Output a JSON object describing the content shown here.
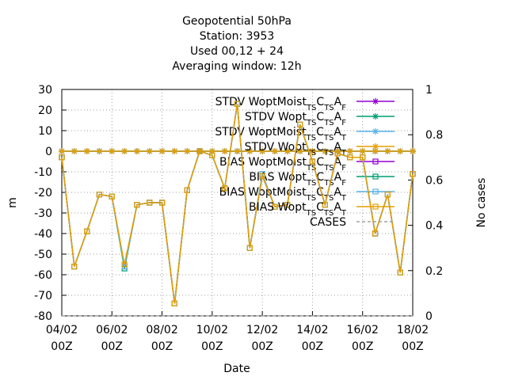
{
  "chart_data": {
    "type": "line",
    "title": [
      "Geopotential 50hPa",
      "Station:     3953",
      "Used  00,12  + 24",
      "Averaging window: 12h"
    ],
    "xlabel": "Date",
    "ylabel": "m",
    "y2label": "No cases",
    "x": [
      "04/02 00Z",
      "04/02 12Z",
      "05/02 00Z",
      "05/02 12Z",
      "06/02 00Z",
      "06/02 12Z",
      "07/02 00Z",
      "07/02 12Z",
      "08/02 00Z",
      "08/02 12Z",
      "09/02 00Z",
      "09/02 12Z",
      "10/02 00Z",
      "10/02 12Z",
      "11/02 00Z",
      "11/02 12Z",
      "12/02 00Z",
      "12/02 12Z",
      "13/02 00Z",
      "13/02 12Z",
      "14/02 00Z",
      "14/02 12Z",
      "15/02 00Z",
      "15/02 12Z",
      "16/02 00Z",
      "16/02 12Z",
      "17/02 00Z",
      "17/02 12Z",
      "18/02 00Z"
    ],
    "xticks": [
      [
        "04/02",
        "00Z"
      ],
      [
        "06/02",
        "00Z"
      ],
      [
        "08/02",
        "00Z"
      ],
      [
        "10/02",
        "00Z"
      ],
      [
        "12/02",
        "00Z"
      ],
      [
        "14/02",
        "00Z"
      ],
      [
        "16/02",
        "00Z"
      ],
      [
        "18/02",
        "00Z"
      ]
    ],
    "ylim": [
      -80,
      30
    ],
    "yticks": [
      -80,
      -70,
      -60,
      -50,
      -40,
      -30,
      -20,
      -10,
      0,
      10,
      20,
      30
    ],
    "y2lim": [
      0,
      1
    ],
    "y2ticks": [
      0,
      0.2,
      0.4,
      0.6,
      0.8,
      1
    ],
    "grid": true,
    "series": [
      {
        "name": [
          "STDV WoptMoist",
          "TS",
          "C",
          "TS",
          "A",
          "F"
        ],
        "color": "#9400d3",
        "marker": "star",
        "values": [
          0,
          0,
          0,
          0,
          0,
          0,
          0,
          0,
          0,
          0,
          0,
          0,
          0,
          0,
          0,
          0,
          0,
          0,
          0,
          0,
          0,
          0,
          0,
          0,
          0,
          0,
          0,
          0,
          0
        ]
      },
      {
        "name": [
          "STDV Wopt",
          "TS",
          "C",
          "TS",
          "A",
          "F"
        ],
        "color": "#009e73",
        "marker": "star",
        "values": [
          0,
          0,
          0,
          0,
          0,
          0,
          0,
          0,
          0,
          0,
          0,
          0,
          0,
          0,
          0,
          0,
          0,
          0,
          0,
          0,
          0,
          0,
          0,
          0,
          0,
          0,
          0,
          0,
          0
        ]
      },
      {
        "name": [
          "STDV WoptMoist",
          "TS",
          "C",
          "TS",
          "A",
          "T"
        ],
        "color": "#56b4e9",
        "marker": "star",
        "values": [
          0,
          0,
          0,
          0,
          0,
          0,
          0,
          0,
          0,
          0,
          0,
          0,
          0,
          0,
          0,
          0,
          0,
          0,
          0,
          0,
          0,
          0,
          0,
          0,
          0,
          0,
          0,
          0,
          0
        ]
      },
      {
        "name": [
          "STDV Wopt",
          "TS",
          "C",
          "TS",
          "A",
          "T"
        ],
        "color": "#e69f00",
        "marker": "star",
        "values": [
          0,
          0,
          0,
          0,
          0,
          0,
          0,
          0,
          0,
          0,
          0,
          0,
          0,
          0,
          0,
          0,
          0,
          0,
          0,
          0,
          0,
          0,
          0,
          0,
          0,
          0,
          0,
          0,
          0
        ]
      },
      {
        "name": [
          "BIAS WoptMoist",
          "TS",
          "C",
          "TS",
          "A",
          "F"
        ],
        "color": "#9400d3",
        "marker": "square",
        "values": [
          -3,
          -56,
          -39,
          -21,
          -22,
          -56,
          -26,
          -25,
          -25,
          -74,
          -19,
          0,
          -2,
          -18,
          23,
          -47,
          -12,
          -27,
          -26,
          13,
          -5,
          -26,
          -1,
          -3,
          -3,
          -40,
          -21,
          -59,
          -11
        ]
      },
      {
        "name": [
          "BIAS Wopt",
          "TS",
          "C",
          "TS",
          "A",
          "F"
        ],
        "color": "#009e73",
        "marker": "square",
        "values": [
          -3,
          -56,
          -39,
          -21,
          -22,
          -57,
          -26,
          -25,
          -25,
          -74,
          -19,
          0,
          -2,
          -18,
          23,
          -47,
          -12,
          -27,
          -26,
          13,
          -5,
          -26,
          -1,
          -3,
          -3,
          -40,
          -21,
          -59,
          -11
        ]
      },
      {
        "name": [
          "BIAS WoptMoist",
          "TS",
          "C",
          "TS",
          "A",
          "T"
        ],
        "color": "#56b4e9",
        "marker": "square",
        "values": [
          -3,
          -56,
          -39,
          -21,
          -22,
          -56,
          -26,
          -25,
          -25,
          -74,
          -19,
          0,
          -2,
          -18,
          23,
          -47,
          -11,
          -27,
          -26,
          13,
          -5,
          -26,
          -1,
          -3,
          -3,
          -40,
          -21,
          -59,
          -11
        ]
      },
      {
        "name": [
          "BIAS Wopt",
          "TS",
          "C",
          "TS",
          "A",
          "T"
        ],
        "color": "#e69f00",
        "marker": "square",
        "values": [
          -3,
          -56,
          -39,
          -21,
          -22,
          -55,
          -26,
          -25,
          -25,
          -74,
          -19,
          0,
          -2,
          -18,
          23,
          -47,
          -12,
          -27,
          -26,
          13,
          -5,
          -26,
          -1,
          -3,
          -3,
          -40,
          -21,
          -59,
          -11
        ]
      },
      {
        "name": [
          "CASES"
        ],
        "color": "#a0a0a0",
        "marker": "none",
        "dashed": true,
        "axis": "y2",
        "values": [
          0,
          0,
          0,
          0,
          0,
          0,
          0,
          0,
          0,
          0,
          0,
          0,
          0,
          0,
          0,
          0,
          0,
          0,
          0,
          0,
          0,
          0,
          0,
          0,
          0,
          0,
          0,
          0,
          0
        ]
      }
    ]
  }
}
